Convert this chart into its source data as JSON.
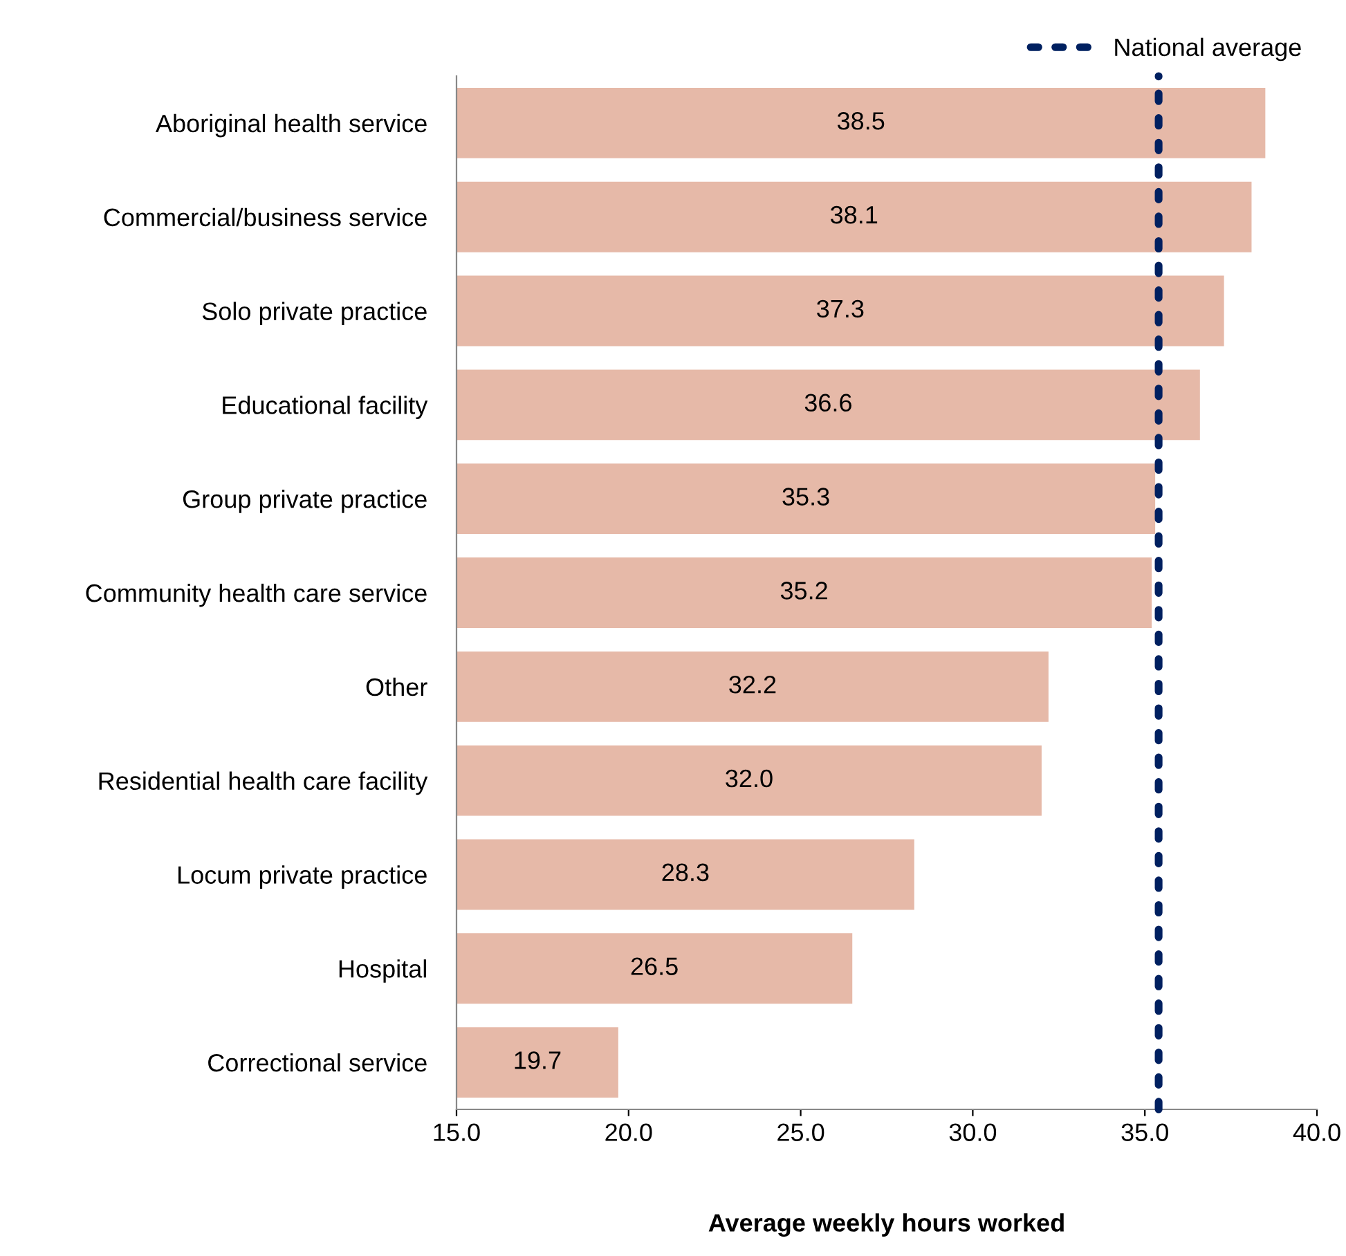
{
  "chart_data": {
    "type": "bar",
    "orientation": "horizontal",
    "xlabel": "Average weekly hours worked",
    "categories": [
      "Aboriginal health service",
      "Commercial/business service",
      "Solo private practice",
      "Educational facility",
      "Group private practice",
      "Community health care service",
      "Other",
      "Residential health care facility",
      "Locum private practice",
      "Hospital",
      "Correctional service"
    ],
    "values": [
      38.5,
      38.1,
      37.3,
      36.6,
      35.3,
      35.2,
      32.2,
      32.0,
      28.3,
      26.5,
      19.7
    ],
    "color": "#e6b9a8",
    "value_labels": [
      "38.5",
      "38.1",
      "37.3",
      "36.6",
      "35.3",
      "35.2",
      "32.2",
      "32.0",
      "28.3",
      "26.5",
      "19.7"
    ],
    "xlim": [
      15,
      40
    ],
    "xticks": [
      {
        "value": 15,
        "label": "15.0"
      },
      {
        "value": 20,
        "label": "20.0"
      },
      {
        "value": 25,
        "label": "25.0"
      },
      {
        "value": 30,
        "label": "30.0"
      },
      {
        "value": 35,
        "label": "35.0"
      },
      {
        "value": 40,
        "label": "40.0"
      }
    ],
    "ref_lines": [
      {
        "axis": "x",
        "value": 35.4,
        "label": "National average",
        "color": "#002060",
        "line_style": "dotted"
      }
    ],
    "grid": false,
    "legend": "top right"
  }
}
